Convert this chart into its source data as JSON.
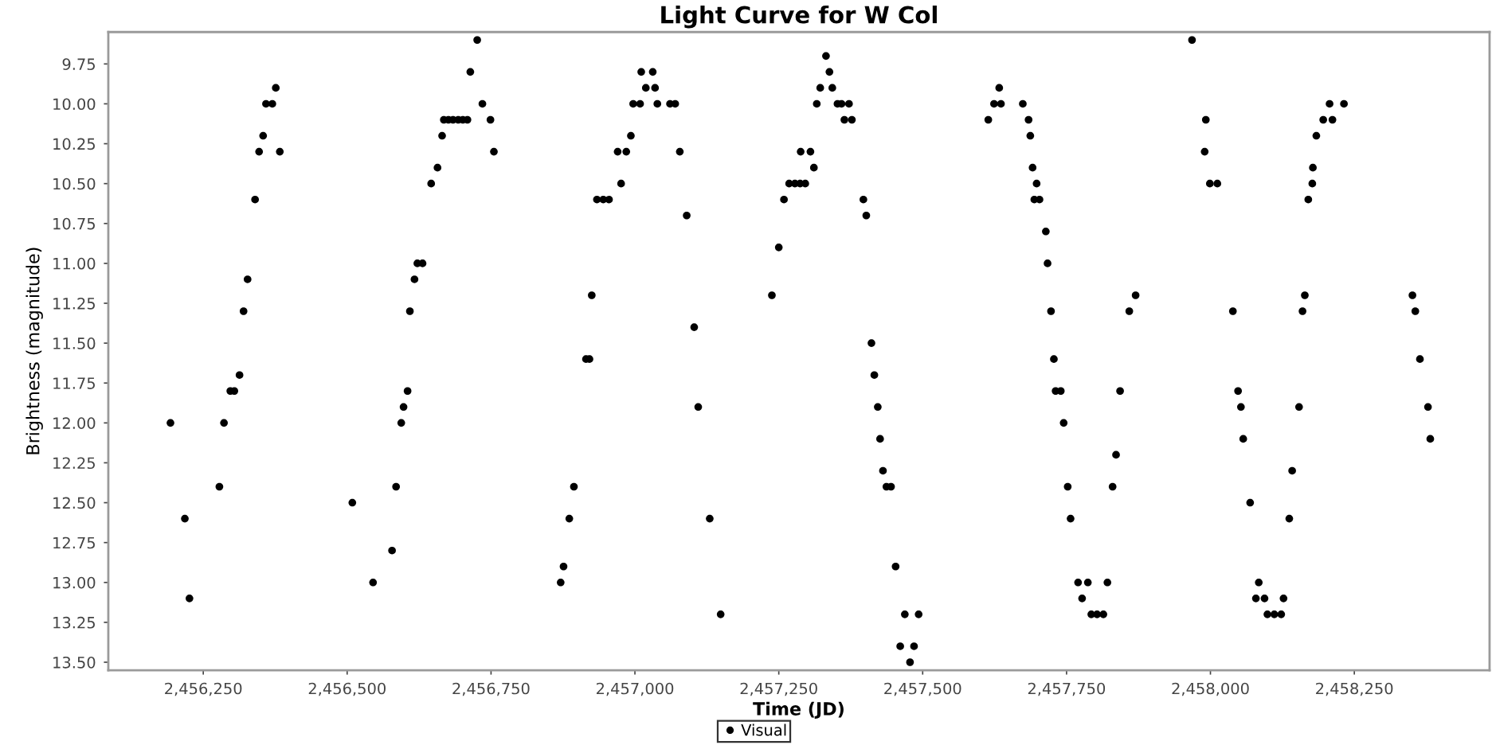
{
  "chart_data": {
    "type": "scatter",
    "title": "Light Curve for W Col",
    "xlabel": "Time (JD)",
    "ylabel": "Brightness (magnitude)",
    "x": [
      2456193,
      2456218,
      2456226,
      2456278,
      2456286,
      2456297,
      2456304,
      2456313,
      2456320,
      2456327,
      2456340,
      2456347,
      2456354,
      2456359,
      2456370,
      2456376,
      2456383,
      2456509,
      2456545,
      2456578,
      2456585,
      2456594,
      2456598,
      2456605,
      2456609,
      2456617,
      2456622,
      2456631,
      2456646,
      2456657,
      2456665,
      2456668,
      2456676,
      2456684,
      2456693,
      2456701,
      2456709,
      2456714,
      2456726,
      2456735,
      2456749,
      2456755,
      2456871,
      2456876,
      2456886,
      2456894,
      2456915,
      2456921,
      2456925,
      2456934,
      2456945,
      2456955,
      2456970,
      2456976,
      2456985,
      2456993,
      2456997,
      2457009,
      2457011,
      2457019,
      2457031,
      2457035,
      2457039,
      2457061,
      2457070,
      2457078,
      2457090,
      2457103,
      2457110,
      2457130,
      2457149,
      2457238,
      2457250,
      2457259,
      2457268,
      2457278,
      2457287,
      2457288,
      2457296,
      2457305,
      2457311,
      2457316,
      2457322,
      2457332,
      2457338,
      2457343,
      2457352,
      2457359,
      2457364,
      2457372,
      2457377,
      2457397,
      2457402,
      2457411,
      2457416,
      2457422,
      2457426,
      2457431,
      2457437,
      2457445,
      2457453,
      2457461,
      2457469,
      2457478,
      2457485,
      2457493,
      2457614,
      2457624,
      2457633,
      2457636,
      2457674,
      2457684,
      2457687,
      2457691,
      2457694,
      2457698,
      2457703,
      2457714,
      2457717,
      2457723,
      2457728,
      2457731,
      2457740,
      2457745,
      2457752,
      2457757,
      2457770,
      2457777,
      2457787,
      2457793,
      2457803,
      2457814,
      2457821,
      2457830,
      2457836,
      2457843,
      2457859,
      2457870,
      2457968,
      2457990,
      2457992,
      2457999,
      2458012,
      2458039,
      2458048,
      2458053,
      2458057,
      2458069,
      2458079,
      2458084,
      2458094,
      2458099,
      2458111,
      2458123,
      2458127,
      2458137,
      2458142,
      2458154,
      2458160,
      2458164,
      2458170,
      2458177,
      2458178,
      2458184,
      2458196,
      2458207,
      2458212,
      2458232,
      2458351,
      2458356,
      2458364,
      2458378,
      2458382
    ],
    "series": [
      {
        "name": "Visual",
        "color": "#000000",
        "values": [
          12.0,
          12.6,
          13.1,
          12.4,
          12.0,
          11.8,
          11.8,
          11.7,
          11.3,
          11.1,
          10.6,
          10.3,
          10.2,
          10.0,
          10.0,
          9.9,
          10.3,
          12.5,
          13.0,
          12.8,
          12.4,
          12.0,
          11.9,
          11.8,
          11.3,
          11.1,
          11.0,
          11.0,
          10.5,
          10.4,
          10.2,
          10.1,
          10.1,
          10.1,
          10.1,
          10.1,
          10.1,
          9.8,
          9.6,
          10.0,
          10.1,
          10.3,
          13.0,
          12.9,
          12.6,
          12.4,
          11.6,
          11.6,
          11.2,
          10.6,
          10.6,
          10.6,
          10.3,
          10.5,
          10.3,
          10.2,
          10.0,
          10.0,
          9.8,
          9.9,
          9.8,
          9.9,
          10.0,
          10.0,
          10.0,
          10.3,
          10.7,
          11.4,
          11.9,
          12.6,
          13.2,
          11.2,
          10.9,
          10.6,
          10.5,
          10.5,
          10.5,
          10.3,
          10.5,
          10.3,
          10.4,
          10.0,
          9.9,
          9.7,
          9.8,
          9.9,
          10.0,
          10.0,
          10.1,
          10.0,
          10.1,
          10.6,
          10.7,
          11.5,
          11.7,
          11.9,
          12.1,
          12.3,
          12.4,
          12.4,
          12.9,
          13.4,
          13.2,
          13.5,
          13.4,
          13.2,
          10.1,
          10.0,
          9.9,
          10.0,
          10.0,
          10.1,
          10.2,
          10.4,
          10.6,
          10.5,
          10.6,
          10.8,
          11.0,
          11.3,
          11.6,
          11.8,
          11.8,
          12.0,
          12.4,
          12.6,
          13.0,
          13.1,
          13.0,
          13.2,
          13.2,
          13.2,
          13.0,
          12.4,
          12.2,
          11.8,
          11.3,
          11.2,
          9.6,
          10.3,
          10.1,
          10.5,
          10.5,
          11.3,
          11.8,
          11.9,
          12.1,
          12.5,
          13.1,
          13.0,
          13.1,
          13.2,
          13.2,
          13.2,
          13.1,
          12.6,
          12.3,
          11.9,
          11.3,
          11.2,
          10.6,
          10.5,
          10.4,
          10.2,
          10.1,
          10.0,
          10.1,
          10.0,
          11.2,
          11.3,
          11.6,
          11.9,
          12.1
        ]
      }
    ],
    "xlim": [
      2456085,
      2458485
    ],
    "xticks": [
      {
        "value": 2456250,
        "label": "2,456,250"
      },
      {
        "value": 2456500,
        "label": "2,456,500"
      },
      {
        "value": 2456750,
        "label": "2,456,750"
      },
      {
        "value": 2457000,
        "label": "2,457,000"
      },
      {
        "value": 2457250,
        "label": "2,457,250"
      },
      {
        "value": 2457500,
        "label": "2,457,500"
      },
      {
        "value": 2457750,
        "label": "2,457,750"
      },
      {
        "value": 2458000,
        "label": "2,458,000"
      },
      {
        "value": 2458250,
        "label": "2,458,250"
      }
    ],
    "ylim": [
      13.55,
      9.55
    ],
    "yticks": [
      9.75,
      {
        "value": 10,
        "label": "10.00"
      },
      10.25,
      {
        "value": 10.5,
        "label": "10.50"
      },
      10.75,
      {
        "value": 11,
        "label": "11.00"
      },
      11.25,
      {
        "value": 11.5,
        "label": "11.50"
      },
      11.75,
      {
        "value": 12,
        "label": "12.00"
      },
      12.25,
      {
        "value": 12.5,
        "label": "12.50"
      },
      12.75,
      {
        "value": 13,
        "label": "13.00"
      },
      13.25,
      {
        "value": 13.5,
        "label": "13.50"
      }
    ],
    "marker": "circle",
    "legend": "bottom"
  }
}
